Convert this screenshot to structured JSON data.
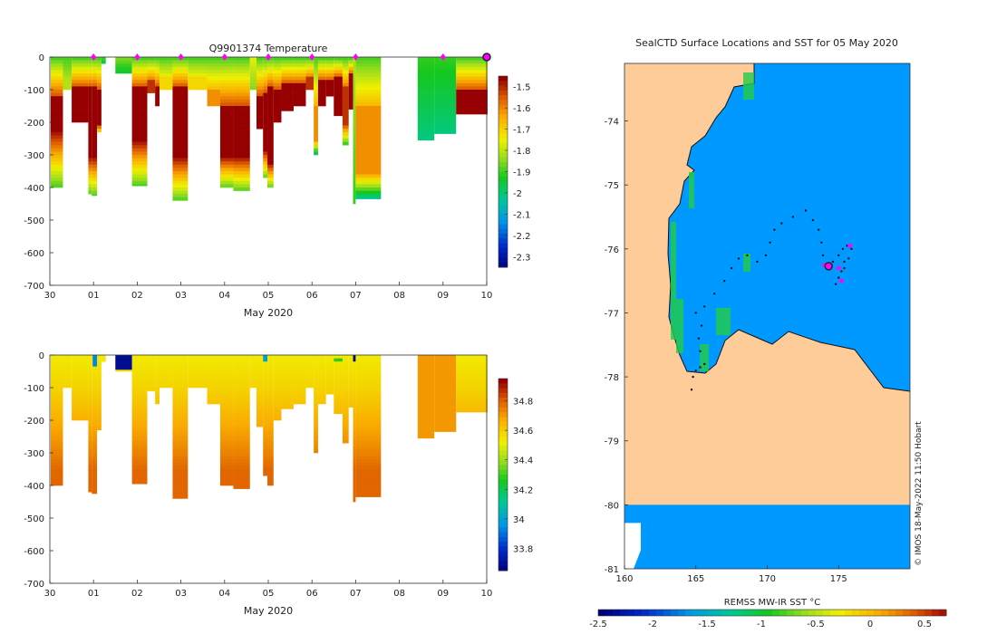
{
  "chart_data": [
    {
      "id": "temperature",
      "type": "heatmap",
      "title": "Q9901374  Temperature",
      "xlabel": "May 2020",
      "ylabel": "",
      "x_ticks": [
        "30",
        "01",
        "02",
        "03",
        "04",
        "05",
        "06",
        "07",
        "08",
        "09",
        "10"
      ],
      "x_range_days": [
        0,
        10
      ],
      "y_ticks": [
        "0",
        "-100",
        "-200",
        "-300",
        "-400",
        "-500",
        "-600",
        "-700"
      ],
      "ylim": [
        -700,
        0
      ],
      "colorbar": {
        "min": -2.35,
        "max": -1.45,
        "ticks": [
          "-1.5",
          "-1.6",
          "-1.7",
          "-1.8",
          "-1.9",
          "-2",
          "-2.1",
          "-2.2",
          "-2.3"
        ]
      },
      "profile_markers_days": [
        1,
        2,
        3,
        4,
        5,
        6,
        7,
        9
      ],
      "latest_profile_day": 10,
      "profiles": [
        {
          "x": 0.02,
          "w": 0.28,
          "depth": 400,
          "tmax": -1.45,
          "hot": [
            120,
            220
          ]
        },
        {
          "x": 0.3,
          "w": 0.2,
          "depth": 100,
          "tmax": -1.8,
          "hot": [
            60,
            100
          ]
        },
        {
          "x": 0.5,
          "w": 0.38,
          "depth": 200,
          "tmax": -1.45,
          "hot": [
            90,
            190
          ]
        },
        {
          "x": 0.88,
          "w": 0.08,
          "depth": 420,
          "tmax": -1.45,
          "hot": [
            90,
            300
          ]
        },
        {
          "x": 0.96,
          "w": 0.12,
          "depth": 425,
          "tmax": -1.45,
          "hot": [
            90,
            300
          ]
        },
        {
          "x": 1.08,
          "w": 0.1,
          "depth": 230,
          "tmax": -1.45,
          "hot": [
            100,
            200
          ]
        },
        {
          "x": 1.18,
          "w": 0.1,
          "depth": 20,
          "tmax": -1.9,
          "hot": [
            0,
            0
          ]
        },
        {
          "x": 1.5,
          "w": 0.38,
          "depth": 50,
          "tmax": -1.85,
          "hot": [
            0,
            0
          ]
        },
        {
          "x": 1.88,
          "w": 0.35,
          "depth": 395,
          "tmax": -1.45,
          "hot": [
            90,
            250
          ]
        },
        {
          "x": 2.23,
          "w": 0.18,
          "depth": 110,
          "tmax": -1.5,
          "hot": [
            70,
            100
          ]
        },
        {
          "x": 2.41,
          "w": 0.1,
          "depth": 150,
          "tmax": -1.45,
          "hot": [
            90,
            150
          ]
        },
        {
          "x": 2.51,
          "w": 0.3,
          "depth": 100,
          "tmax": -1.7,
          "hot": [
            60,
            100
          ]
        },
        {
          "x": 2.81,
          "w": 0.35,
          "depth": 440,
          "tmax": -1.45,
          "hot": [
            90,
            300
          ]
        },
        {
          "x": 3.16,
          "w": 0.44,
          "depth": 100,
          "tmax": -1.7,
          "hot": [
            60,
            100
          ]
        },
        {
          "x": 3.6,
          "w": 0.3,
          "depth": 150,
          "tmax": -1.6,
          "hot": [
            100,
            150
          ]
        },
        {
          "x": 3.9,
          "w": 0.3,
          "depth": 400,
          "tmax": -1.45,
          "hot": [
            150,
            300
          ]
        },
        {
          "x": 4.2,
          "w": 0.38,
          "depth": 410,
          "tmax": -1.45,
          "hot": [
            150,
            300
          ]
        },
        {
          "x": 4.58,
          "w": 0.15,
          "depth": 100,
          "tmax": -1.75,
          "hot": [
            0,
            0
          ]
        },
        {
          "x": 4.73,
          "w": 0.15,
          "depth": 220,
          "tmax": -1.45,
          "hot": [
            120,
            220
          ]
        },
        {
          "x": 4.88,
          "w": 0.1,
          "depth": 370,
          "tmax": -1.45,
          "hot": [
            110,
            280
          ]
        },
        {
          "x": 4.98,
          "w": 0.14,
          "depth": 400,
          "tmax": -1.45,
          "hot": [
            90,
            320
          ]
        },
        {
          "x": 5.12,
          "w": 0.18,
          "depth": 200,
          "tmax": -1.45,
          "hot": [
            100,
            200
          ]
        },
        {
          "x": 5.3,
          "w": 0.28,
          "depth": 165,
          "tmax": -1.45,
          "hot": [
            80,
            165
          ]
        },
        {
          "x": 5.58,
          "w": 0.28,
          "depth": 150,
          "tmax": -1.45,
          "hot": [
            80,
            150
          ]
        },
        {
          "x": 5.86,
          "w": 0.18,
          "depth": 100,
          "tmax": -1.5,
          "hot": [
            60,
            100
          ]
        },
        {
          "x": 6.04,
          "w": 0.1,
          "depth": 300,
          "tmax": -1.6,
          "hot": [
            150,
            250
          ]
        },
        {
          "x": 6.14,
          "w": 0.18,
          "depth": 150,
          "tmax": -1.45,
          "hot": [
            70,
            150
          ]
        },
        {
          "x": 6.32,
          "w": 0.18,
          "depth": 120,
          "tmax": -1.45,
          "hot": [
            70,
            120
          ]
        },
        {
          "x": 6.5,
          "w": 0.2,
          "depth": 180,
          "tmax": -1.45,
          "hot": [
            60,
            180
          ]
        },
        {
          "x": 6.7,
          "w": 0.14,
          "depth": 270,
          "tmax": -1.5,
          "hot": [
            90,
            200
          ]
        },
        {
          "x": 6.84,
          "w": 0.1,
          "depth": 160,
          "tmax": -1.45,
          "hot": [
            50,
            160
          ]
        },
        {
          "x": 6.94,
          "w": 0.06,
          "depth": 450,
          "tmax": -1.8,
          "hot": [
            0,
            0
          ]
        },
        {
          "x": 7.0,
          "w": 0.58,
          "depth": 435,
          "tmax": -1.6,
          "hot": [
            150,
            350
          ]
        },
        {
          "x": 8.42,
          "w": 0.38,
          "depth": 255,
          "tmax": -1.9,
          "hot": [
            0,
            0
          ]
        },
        {
          "x": 8.8,
          "w": 0.5,
          "depth": 235,
          "tmax": -1.9,
          "hot": [
            0,
            0
          ]
        },
        {
          "x": 9.3,
          "w": 0.72,
          "depth": 175,
          "tmax": -1.45,
          "hot": [
            100,
            175
          ]
        }
      ]
    },
    {
      "id": "salinity",
      "type": "heatmap",
      "title": "",
      "xlabel": "May 2020",
      "ylabel": "",
      "x_ticks": [
        "30",
        "01",
        "02",
        "03",
        "04",
        "05",
        "06",
        "07",
        "08",
        "09",
        "10"
      ],
      "x_range_days": [
        0,
        10
      ],
      "y_ticks": [
        "0",
        "-100",
        "-200",
        "-300",
        "-400",
        "-500",
        "-600",
        "-700"
      ],
      "ylim": [
        -700,
        0
      ],
      "colorbar": {
        "min": 33.65,
        "max": 34.95,
        "ticks": [
          "34.8",
          "34.6",
          "34.4",
          "34.2",
          "34",
          "33.8"
        ]
      },
      "anomalies": [
        {
          "x": 0.98,
          "w": 0.1,
          "d0": 0,
          "d1": 35,
          "value": 33.95
        },
        {
          "x": 1.5,
          "w": 0.38,
          "d0": 0,
          "d1": 45,
          "value": 33.7
        },
        {
          "x": 4.88,
          "w": 0.1,
          "d0": 0,
          "d1": 20,
          "value": 34.0
        },
        {
          "x": 6.5,
          "w": 0.2,
          "d0": 10,
          "d1": 20,
          "value": 34.3
        },
        {
          "x": 6.94,
          "w": 0.06,
          "d0": 0,
          "d1": 20,
          "value": 33.7
        }
      ]
    },
    {
      "id": "map",
      "type": "heatmap",
      "title": "SealCTD Surface Locations and SST for 05 May 2020",
      "xlabel": "",
      "colorbar_label": "REMSS MW-IR SST °C",
      "lon_range": [
        160,
        180
      ],
      "lat_range": [
        -81,
        -73.1
      ],
      "x_ticks": [
        "160",
        "165",
        "170",
        "175"
      ],
      "y_ticks": [
        "-74",
        "-75",
        "-76",
        "-77",
        "-78",
        "-79",
        "-80",
        "-81"
      ],
      "colorbar": {
        "min": -2.5,
        "max": 0.7,
        "ticks": [
          "-2.5",
          "-2",
          "-1.5",
          "-1",
          "-0.5",
          "0",
          "0.5"
        ]
      },
      "sst_value": -1.75,
      "track": [
        [
          164.7,
          -78.2
        ],
        [
          164.8,
          -78.0
        ],
        [
          165.0,
          -77.9
        ],
        [
          165.3,
          -77.85
        ],
        [
          165.6,
          -77.8
        ],
        [
          165.3,
          -77.6
        ],
        [
          165.2,
          -77.4
        ],
        [
          165.4,
          -77.2
        ],
        [
          165.0,
          -77.0
        ],
        [
          165.6,
          -76.9
        ],
        [
          166.3,
          -76.7
        ],
        [
          167.0,
          -76.5
        ],
        [
          167.5,
          -76.3
        ],
        [
          168.0,
          -76.15
        ],
        [
          168.6,
          -76.1
        ],
        [
          169.3,
          -76.2
        ],
        [
          169.9,
          -76.1
        ],
        [
          170.2,
          -75.9
        ],
        [
          170.5,
          -75.7
        ],
        [
          171.0,
          -75.6
        ],
        [
          171.8,
          -75.5
        ],
        [
          172.7,
          -75.4
        ],
        [
          173.2,
          -75.55
        ],
        [
          173.6,
          -75.7
        ],
        [
          173.8,
          -75.9
        ],
        [
          173.9,
          -76.1
        ],
        [
          174.2,
          -76.3
        ],
        [
          174.6,
          -76.2
        ],
        [
          175.0,
          -76.1
        ],
        [
          175.3,
          -76.0
        ],
        [
          175.6,
          -75.95
        ],
        [
          175.4,
          -76.2
        ],
        [
          175.2,
          -76.35
        ],
        [
          175.0,
          -76.45
        ],
        [
          174.8,
          -76.55
        ],
        [
          175.4,
          -76.3
        ],
        [
          175.7,
          -76.15
        ],
        [
          175.9,
          -76.0
        ]
      ],
      "latest_position": [
        174.3,
        -76.27
      ],
      "recent_positions": [
        [
          175.8,
          -75.95
        ],
        [
          175.2,
          -76.5
        ],
        [
          175.0,
          -76.3
        ],
        [
          174.0,
          -76.25
        ]
      ],
      "credit": "© IMOS 18-May-2022 11:50 Hobart"
    }
  ]
}
